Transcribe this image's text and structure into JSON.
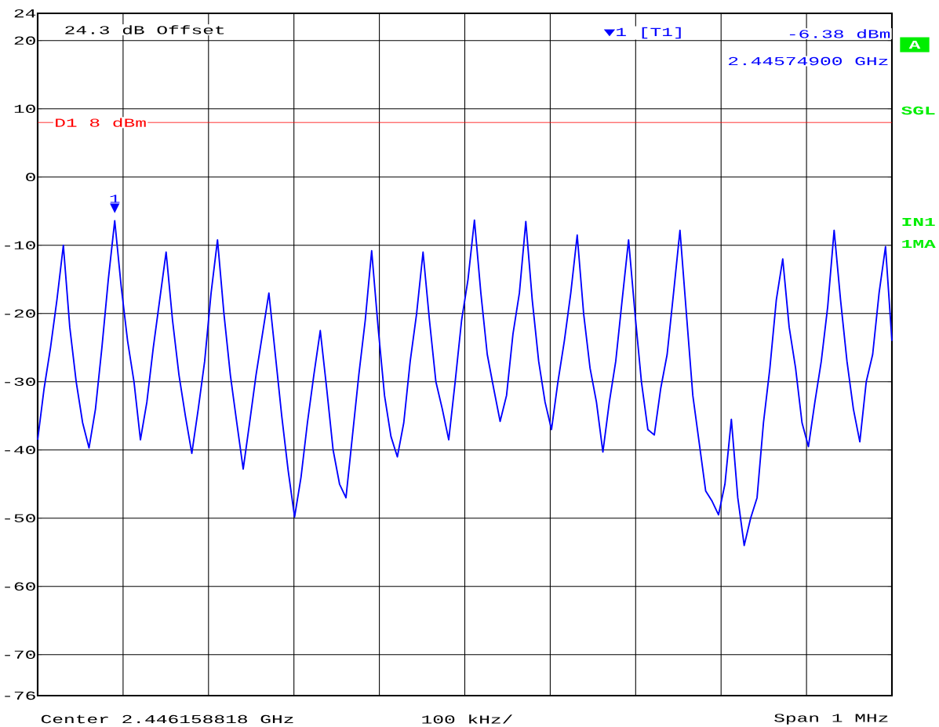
{
  "chart_data": {
    "type": "line",
    "categories": [
      null,
      null,
      null,
      null,
      null,
      null,
      null,
      null,
      null,
      null,
      null,
      null,
      null,
      null,
      null,
      null,
      null,
      null,
      null,
      null,
      null,
      null,
      null,
      null,
      null,
      null,
      null,
      null,
      null,
      null,
      null,
      null,
      null,
      null,
      null,
      null,
      null,
      null,
      null,
      null,
      null,
      null,
      null,
      null,
      null,
      null,
      null,
      null,
      null,
      null,
      null,
      null,
      null,
      null,
      null,
      null,
      null,
      null,
      null,
      null,
      null,
      null,
      null,
      null,
      null,
      null,
      null,
      null,
      null,
      null,
      null,
      null,
      null,
      null,
      null,
      null,
      null,
      null,
      null,
      null,
      null,
      null,
      null,
      null,
      null,
      null,
      null,
      null,
      null,
      null,
      null,
      null,
      null,
      null,
      null,
      null,
      null,
      null,
      null,
      null,
      null,
      null,
      null,
      null,
      null,
      null,
      null,
      null,
      null,
      null,
      null,
      null,
      null,
      null,
      null,
      null,
      null,
      null,
      null,
      null,
      null,
      null,
      null,
      null,
      null,
      null,
      null,
      null,
      null,
      null,
      null,
      null,
      null,
      null
    ],
    "series": [
      {
        "color": "#0000ff",
        "values": [
          -38.5,
          -31,
          -25,
          -18,
          -10,
          -22,
          -30,
          -36,
          -39.7,
          -34,
          -25,
          -15,
          -6.4,
          -16,
          -24,
          -30,
          -38.5,
          -33,
          -25,
          -18,
          -11,
          -21,
          -29,
          -35,
          -40.5,
          -34,
          -27,
          -17,
          -9.2,
          -20,
          -29,
          -36,
          -42.8,
          -36,
          -29,
          -23,
          -17,
          -26,
          -35,
          -43,
          -49.8,
          -44,
          -36,
          -29,
          -22.5,
          -31,
          -40,
          -45,
          -47,
          -38,
          -29,
          -21,
          -10.8,
          -22,
          -32,
          -38,
          -41,
          -36,
          -27,
          -20,
          -11,
          -21,
          -30,
          -34,
          -38.5,
          -30,
          -21,
          -15,
          -6.3,
          -17,
          -26,
          -31,
          -35.8,
          -32,
          -23,
          -17,
          -6.5,
          -18,
          -27,
          -33,
          -37,
          -30,
          -24,
          -17,
          -8.5,
          -20,
          -28,
          -33,
          -40.3,
          -33,
          -27,
          -18,
          -9.2,
          -20,
          -30,
          -37,
          -37.8,
          -31,
          -26,
          -17,
          -7.8,
          -20,
          -32,
          -39,
          -46,
          -47.5,
          -49.5,
          -45,
          -35.5,
          -47,
          -54,
          -50,
          -47,
          -36,
          -28,
          -18,
          -12,
          -22,
          -28,
          -36,
          -39.5,
          -33,
          -27,
          -19,
          -7.8,
          -18,
          -27,
          -34,
          -38.8,
          -30,
          -26,
          -17,
          -10.2,
          -24
        ]
      }
    ],
    "ylim": [
      -76,
      24
    ],
    "yticks": [
      24,
      20,
      10,
      0,
      -10,
      -20,
      -30,
      -40,
      -50,
      -60,
      -70,
      -76
    ],
    "grid": true,
    "ref_lines": [
      {
        "axis": "y",
        "value": 8,
        "label": "D1 8 dBm",
        "color": "#ff0000"
      }
    ],
    "annotations": [
      {
        "text": "1",
        "y": -6.4
      },
      "24.3 dB Offset",
      "▼1 [T1]",
      "-6.38 dBm",
      "2.44574900 GHz",
      "Center 2.446158818 GHz",
      "100 kHz/",
      "Span 1 MHz",
      "A",
      "SGL",
      "IN1",
      "1MA",
      {
        "text": "▼",
        "y": -6.4
      }
    ]
  }
}
